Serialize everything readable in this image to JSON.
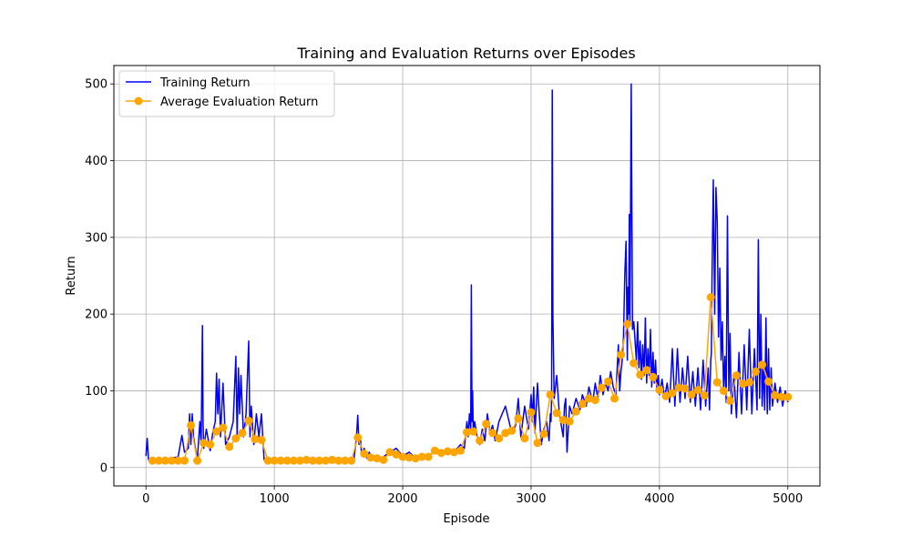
{
  "chart_data": {
    "type": "line",
    "title": "Training and Evaluation Returns over Episodes",
    "xlabel": "Episode",
    "ylabel": "Return",
    "xlim": [
      -250,
      5250
    ],
    "ylim": [
      -24,
      524
    ],
    "xticks": [
      0,
      1000,
      2000,
      3000,
      4000,
      5000
    ],
    "yticks": [
      0,
      100,
      200,
      300,
      400,
      500
    ],
    "grid": true,
    "legend_position": "top-left",
    "colors": {
      "training": "#0000ff",
      "evaluation": "#ffa500"
    },
    "series": [
      {
        "name": "Training Return",
        "color": "#0000ff",
        "style": "line",
        "x": [
          0,
          10,
          20,
          50,
          100,
          150,
          200,
          250,
          280,
          300,
          330,
          340,
          350,
          360,
          370,
          400,
          420,
          430,
          440,
          445,
          450,
          470,
          500,
          520,
          540,
          550,
          560,
          570,
          580,
          600,
          620,
          650,
          680,
          700,
          710,
          720,
          730,
          740,
          760,
          780,
          800,
          810,
          820,
          840,
          860,
          880,
          900,
          920,
          950,
          1000,
          1100,
          1200,
          1300,
          1400,
          1500,
          1600,
          1620,
          1640,
          1650,
          1660,
          1670,
          1680,
          1700,
          1720,
          1740,
          1760,
          1780,
          1800,
          1850,
          1900,
          1950,
          2000,
          2050,
          2100,
          2150,
          2200,
          2250,
          2300,
          2350,
          2400,
          2450,
          2480,
          2500,
          2510,
          2520,
          2530,
          2535,
          2540,
          2545,
          2550,
          2560,
          2580,
          2600,
          2620,
          2640,
          2660,
          2680,
          2700,
          2720,
          2750,
          2800,
          2850,
          2880,
          2900,
          2920,
          2950,
          2980,
          3000,
          3010,
          3020,
          3030,
          3050,
          3060,
          3080,
          3100,
          3120,
          3140,
          3150,
          3155,
          3160,
          3165,
          3170,
          3180,
          3200,
          3220,
          3250,
          3260,
          3270,
          3280,
          3300,
          3320,
          3350,
          3380,
          3400,
          3430,
          3450,
          3480,
          3500,
          3520,
          3540,
          3560,
          3580,
          3600,
          3620,
          3640,
          3660,
          3680,
          3690,
          3700,
          3710,
          3720,
          3730,
          3740,
          3750,
          3755,
          3760,
          3765,
          3770,
          3780,
          3790,
          3800,
          3810,
          3820,
          3830,
          3840,
          3850,
          3860,
          3870,
          3880,
          3890,
          3900,
          3910,
          3920,
          3930,
          3940,
          3950,
          3960,
          3970,
          3980,
          3990,
          4000,
          4020,
          4040,
          4060,
          4080,
          4100,
          4120,
          4140,
          4160,
          4180,
          4200,
          4220,
          4240,
          4260,
          4280,
          4300,
          4320,
          4340,
          4360,
          4380,
          4390,
          4400,
          4405,
          4410,
          4420,
          4430,
          4440,
          4450,
          4460,
          4470,
          4480,
          4490,
          4500,
          4510,
          4520,
          4530,
          4540,
          4550,
          4560,
          4580,
          4600,
          4620,
          4640,
          4660,
          4680,
          4700,
          4720,
          4740,
          4760,
          4770,
          4780,
          4790,
          4800,
          4810,
          4820,
          4830,
          4840,
          4850,
          4860,
          4870,
          4880,
          4900,
          4920,
          4940,
          4960,
          4980,
          5000
        ],
        "y": [
          15,
          38,
          10,
          8,
          10,
          9,
          12,
          14,
          42,
          20,
          25,
          70,
          30,
          70,
          40,
          10,
          60,
          30,
          185,
          60,
          25,
          50,
          22,
          45,
          60,
          123,
          70,
          115,
          40,
          110,
          30,
          40,
          60,
          145,
          40,
          130,
          70,
          120,
          40,
          70,
          165,
          40,
          80,
          30,
          70,
          40,
          70,
          10,
          8,
          9,
          8,
          9,
          8,
          10,
          9,
          8,
          10,
          40,
          68,
          30,
          40,
          15,
          25,
          12,
          20,
          10,
          15,
          12,
          14,
          20,
          25,
          15,
          20,
          12,
          18,
          14,
          22,
          18,
          25,
          20,
          30,
          25,
          60,
          40,
          70,
          50,
          238,
          60,
          100,
          45,
          60,
          40,
          30,
          50,
          35,
          70,
          45,
          55,
          35,
          60,
          80,
          45,
          55,
          90,
          40,
          80,
          50,
          95,
          60,
          105,
          45,
          110,
          80,
          30,
          50,
          60,
          35,
          70,
          60,
          90,
          492,
          200,
          90,
          120,
          70,
          40,
          80,
          90,
          20,
          80,
          70,
          90,
          75,
          95,
          80,
          105,
          85,
          110,
          90,
          120,
          95,
          110,
          100,
          125,
          105,
          95,
          160,
          100,
          125,
          140,
          170,
          250,
          295,
          140,
          235,
          200,
          330,
          185,
          500,
          180,
          190,
          165,
          140,
          190,
          130,
          165,
          115,
          160,
          120,
          195,
          110,
          155,
          120,
          180,
          105,
          150,
          110,
          140,
          100,
          120,
          95,
          115,
          90,
          110,
          85,
          155,
          80,
          155,
          85,
          130,
          90,
          145,
          85,
          125,
          80,
          130,
          75,
          140,
          80,
          130,
          75,
          140,
          150,
          250,
          375,
          200,
          365,
          320,
          170,
          260,
          140,
          190,
          100,
          145,
          85,
          328,
          100,
          175,
          70,
          120,
          65,
          150,
          70,
          160,
          75,
          180,
          70,
          155,
          75,
          297,
          90,
          200,
          80,
          135,
          75,
          195,
          70,
          155,
          75,
          130,
          80,
          110,
          85,
          105,
          80,
          100,
          85
        ]
      },
      {
        "name": "Average Evaluation Return",
        "color": "#ffa500",
        "style": "line-marker",
        "x": [
          50,
          100,
          150,
          200,
          250,
          300,
          350,
          400,
          450,
          500,
          550,
          600,
          650,
          700,
          750,
          800,
          850,
          900,
          950,
          1000,
          1050,
          1100,
          1150,
          1200,
          1250,
          1300,
          1350,
          1400,
          1450,
          1500,
          1550,
          1600,
          1650,
          1700,
          1750,
          1800,
          1850,
          1900,
          1950,
          2000,
          2050,
          2100,
          2150,
          2200,
          2250,
          2300,
          2350,
          2400,
          2450,
          2500,
          2550,
          2600,
          2650,
          2700,
          2750,
          2800,
          2850,
          2900,
          2950,
          3000,
          3050,
          3100,
          3150,
          3200,
          3250,
          3300,
          3350,
          3400,
          3450,
          3500,
          3550,
          3600,
          3650,
          3700,
          3750,
          3800,
          3850,
          3900,
          3950,
          4000,
          4050,
          4100,
          4150,
          4200,
          4250,
          4300,
          4350,
          4400,
          4450,
          4500,
          4550,
          4600,
          4650,
          4700,
          4750,
          4800,
          4850,
          4900,
          4950,
          5000
        ],
        "y": [
          9,
          9,
          9,
          9,
          9,
          9,
          55,
          9,
          32,
          30,
          47,
          52,
          27,
          38,
          45,
          61,
          37,
          36,
          9,
          9,
          9,
          9,
          9,
          9,
          10,
          9,
          9,
          9,
          10,
          9,
          9,
          9,
          39,
          18,
          13,
          12,
          10,
          20,
          17,
          14,
          13,
          12,
          14,
          14,
          22,
          19,
          21,
          20,
          22,
          46,
          47,
          35,
          57,
          45,
          38,
          45,
          48,
          64,
          38,
          72,
          32,
          44,
          95,
          71,
          62,
          60,
          73,
          83,
          90,
          88,
          104,
          112,
          90,
          147,
          187,
          136,
          121,
          127,
          118,
          101,
          93,
          97,
          104,
          103,
          95,
          101,
          94,
          222,
          111,
          100,
          87,
          120,
          109,
          111,
          125,
          134,
          112,
          94,
          92,
          92
        ]
      }
    ]
  }
}
